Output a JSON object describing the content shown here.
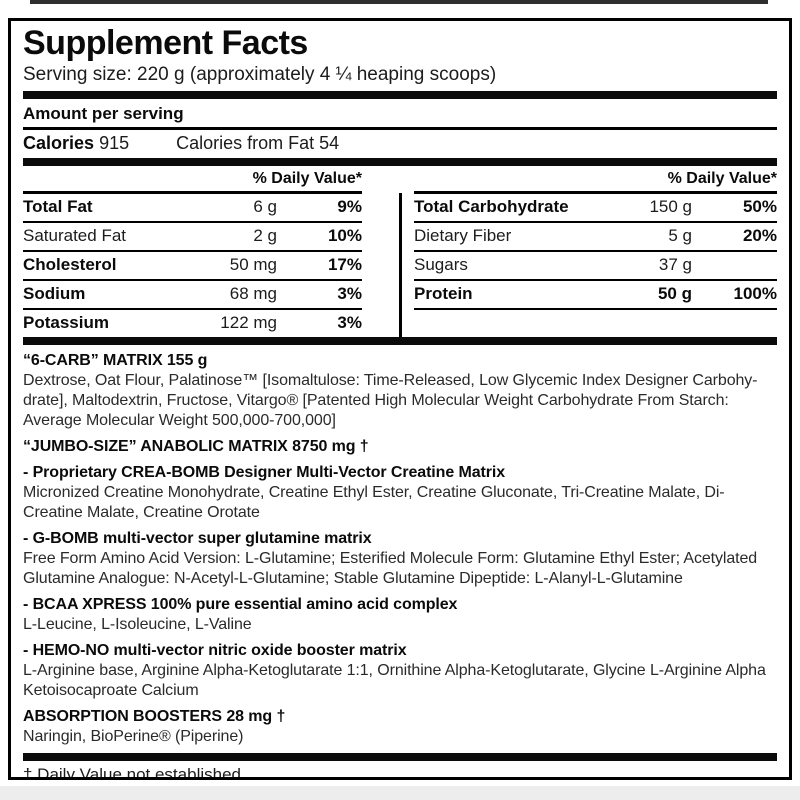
{
  "colors": {
    "label_border": "#000000",
    "background": "#ffffff",
    "text": "#111111"
  },
  "label": {
    "title": "Supplement Facts",
    "serving_size": "Serving size: 220 g (approximately 4 ¼ heaping scoops)",
    "amount_per_serving": "Amount per serving",
    "calories": {
      "label": "Calories",
      "value": "915",
      "from_fat": "Calories from Fat 54"
    },
    "daily_value_header": "% Daily Value*",
    "table": {
      "left_rows": [
        {
          "name": "Total Fat",
          "amount": "6 g",
          "dv": "9%"
        },
        {
          "name": "Saturated Fat",
          "amount": "2 g",
          "dv": "10%"
        },
        {
          "name": "Cholesterol",
          "amount": "50 mg",
          "dv": "17%"
        },
        {
          "name": "Sodium",
          "amount": "68 mg",
          "dv": "3%"
        },
        {
          "name": "Potassium",
          "amount": "122 mg",
          "dv": "3%"
        }
      ],
      "right_rows": [
        {
          "name": "Total Carbohydrate",
          "amount": "150 g",
          "dv": "50%"
        },
        {
          "name": "Dietary Fiber",
          "amount": "5 g",
          "dv": "20%"
        },
        {
          "name": "Sugars",
          "amount": "37 g",
          "dv": ""
        },
        {
          "name": "Protein",
          "amount": "50 g",
          "dv": "100%"
        }
      ]
    },
    "sections": [
      {
        "heading": "“6-CARB” MATRIX 155 g",
        "body": "Dextrose, Oat Flour, Palatinose™ [Isomaltulose: Time-Released, Low Glycemic Index Designer Carbohy-drate], Maltodextrin, Fructose, Vitargo® [Patented High Molecular Weight Carbohydrate From Starch: Average Molecular Weight 500,000-700,000]"
      },
      {
        "heading": "“JUMBO-SIZE” ANABOLIC MATRIX  8750 mg †",
        "body": ""
      },
      {
        "heading": "- Proprietary CREA-BOMB Designer Multi-Vector Creatine Matrix",
        "body": "Micronized Creatine Monohydrate, Creatine Ethyl Ester, Creatine Gluconate, Tri-Creatine Malate, Di-Creatine Malate, Creatine Orotate"
      },
      {
        "heading": "- G-BOMB multi-vector super glutamine matrix",
        "body": "Free Form Amino Acid Version: L-Glutamine; Esterified Molecule Form: Glutamine Ethyl Ester; Acetylated Glutamine Analogue: N-Acetyl-L-Glutamine; Stable Glutamine Dipeptide: L-Alanyl-L-Glutamine"
      },
      {
        "heading": "- BCAA XPRESS 100% pure essential amino acid complex",
        "body": "L-Leucine, L-Isoleucine, L-Valine"
      },
      {
        "heading": "- HEMO-NO multi-vector nitric oxide booster matrix",
        "body": "L-Arginine base, Arginine Alpha-Ketoglutarate 1:1, Ornithine Alpha-Ketoglutarate, Glycine L-Arginine Alpha Ketoisocaproate Calcium"
      },
      {
        "heading": "ABSORPTION BOOSTERS 28 mg †",
        "body": "Naringin, BioPerine® (Piperine)"
      }
    ],
    "footnote": "† Daily Value not established"
  }
}
